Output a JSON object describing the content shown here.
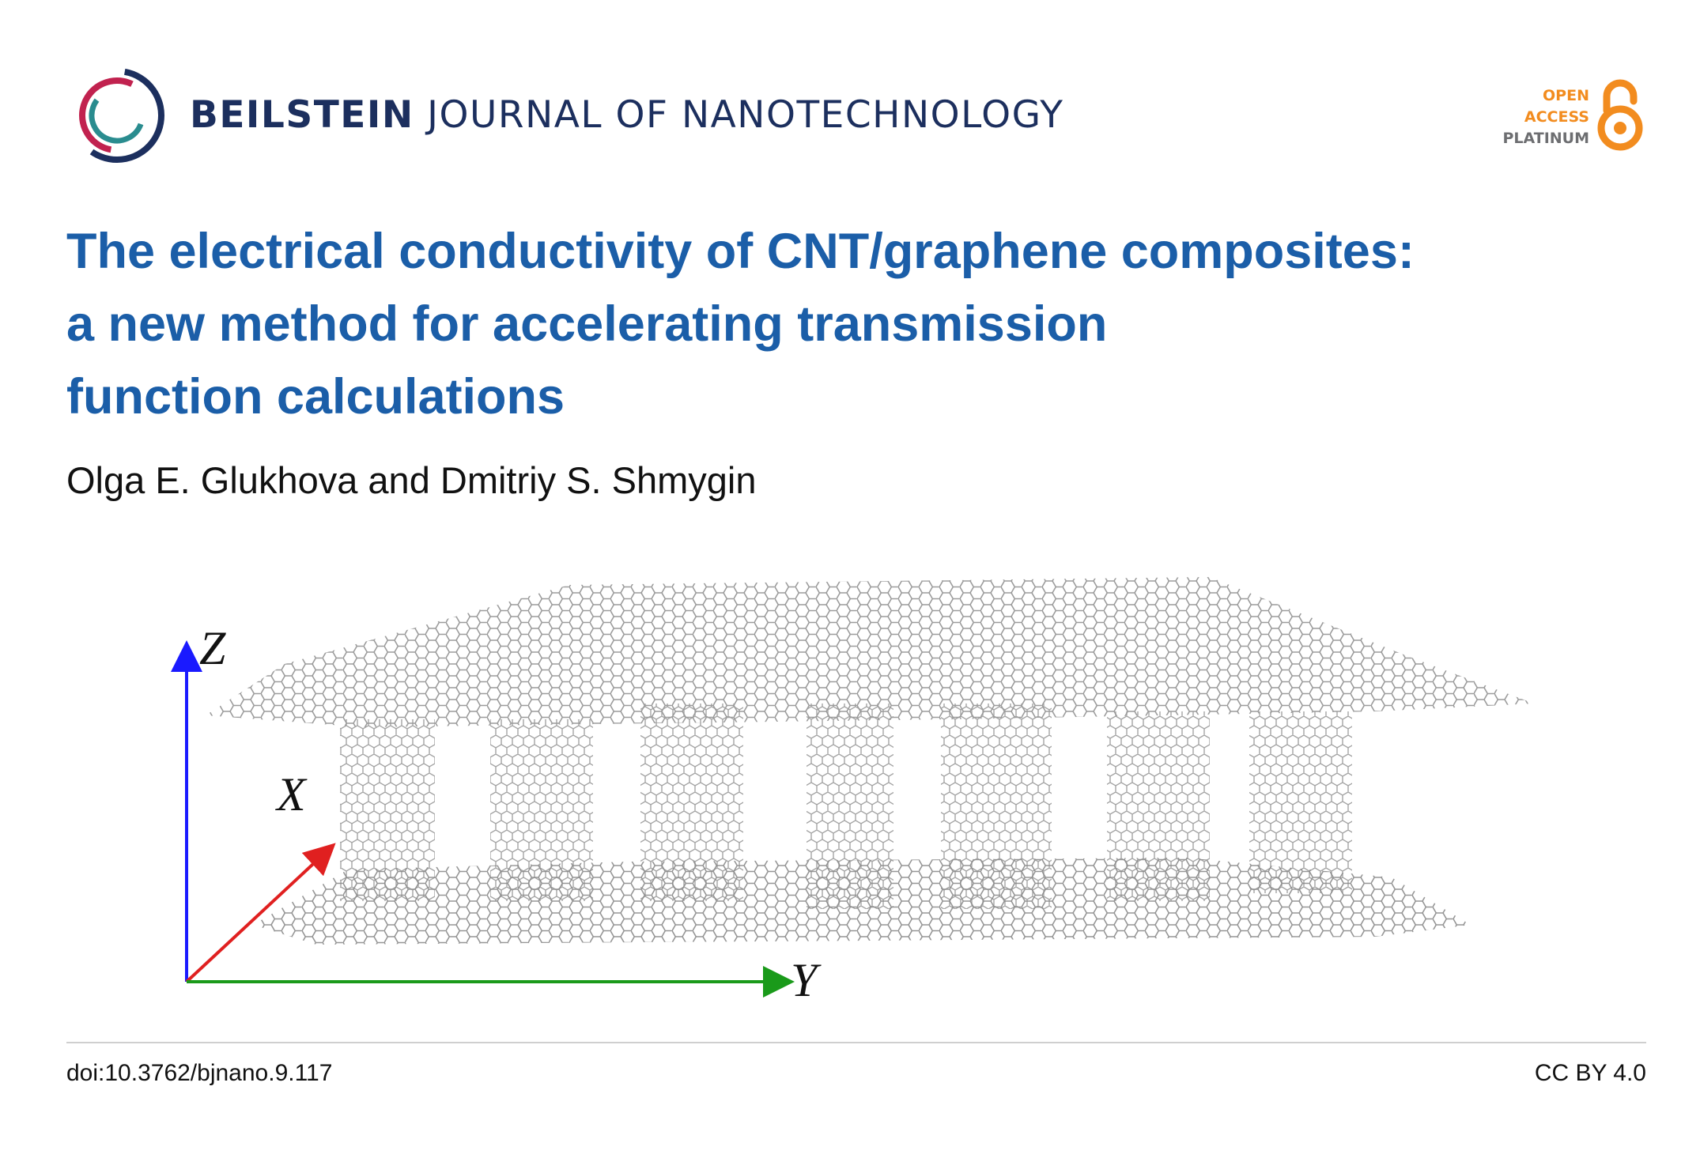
{
  "journal": {
    "name_bold": "BEILSTEIN",
    "name_rest": "JOURNAL OF NANOTECHNOLOGY",
    "logo_colors": [
      "#1c2f5e",
      "#c1224f",
      "#2a8c8f"
    ]
  },
  "badge": {
    "line1": "OPEN",
    "line2": "ACCESS",
    "line3": "PLATINUM",
    "icon": "open-access-lock-icon",
    "accent": "#f28c1f"
  },
  "article": {
    "title_lines": [
      "The electrical conductivity of CNT/graphene composites:",
      "a new method for accelerating transmission",
      "function calculations"
    ],
    "authors": "Olga E. Glukhova and Dmitriy S. Shmygin",
    "title_color": "#1b5ea8"
  },
  "figure": {
    "axes": {
      "z_label": "Z",
      "x_label": "X",
      "y_label": "Y",
      "z_color": "#1a1aff",
      "x_color": "#e02020",
      "y_color": "#1a9a1a"
    },
    "structure_color": "#8a8a8a"
  },
  "footer": {
    "doi": "doi:10.3762/bjnano.9.117",
    "license": "CC BY 4.0"
  }
}
